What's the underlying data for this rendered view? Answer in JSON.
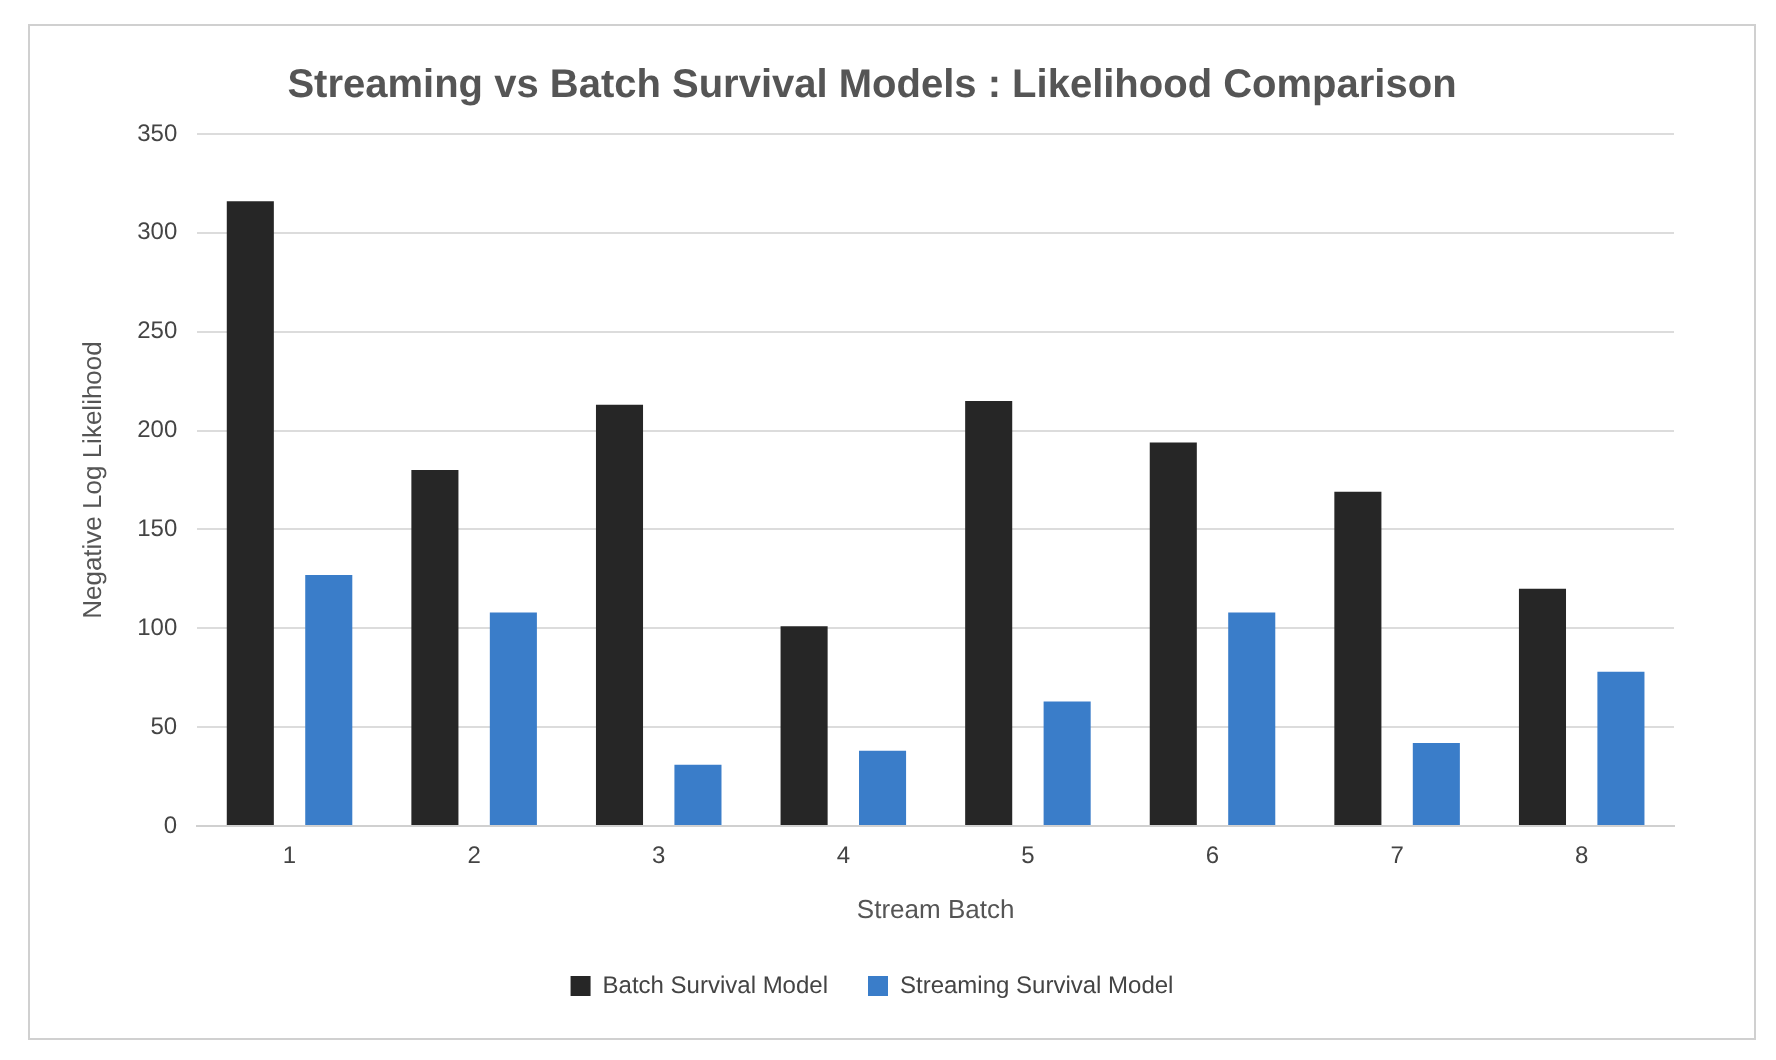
{
  "chart_data": {
    "type": "bar",
    "title": "Streaming vs Batch Survival Models : Likelihood Comparison",
    "xlabel": "Stream Batch",
    "ylabel": "Negative Log Likelihood",
    "categories": [
      "1",
      "2",
      "3",
      "4",
      "5",
      "6",
      "7",
      "8"
    ],
    "series": [
      {
        "name": "Batch Survival Model",
        "color": "#262626",
        "values": [
          316,
          180,
          213,
          101,
          215,
          194,
          169,
          120
        ]
      },
      {
        "name": "Streaming Survival Model",
        "color": "#3a7dc9",
        "values": [
          127,
          108,
          31,
          38,
          63,
          108,
          42,
          78
        ]
      }
    ],
    "ylim": [
      0,
      350
    ],
    "yticks": [
      0,
      50,
      100,
      150,
      200,
      250,
      300,
      350
    ],
    "grid": "y",
    "legend": "bottom"
  }
}
